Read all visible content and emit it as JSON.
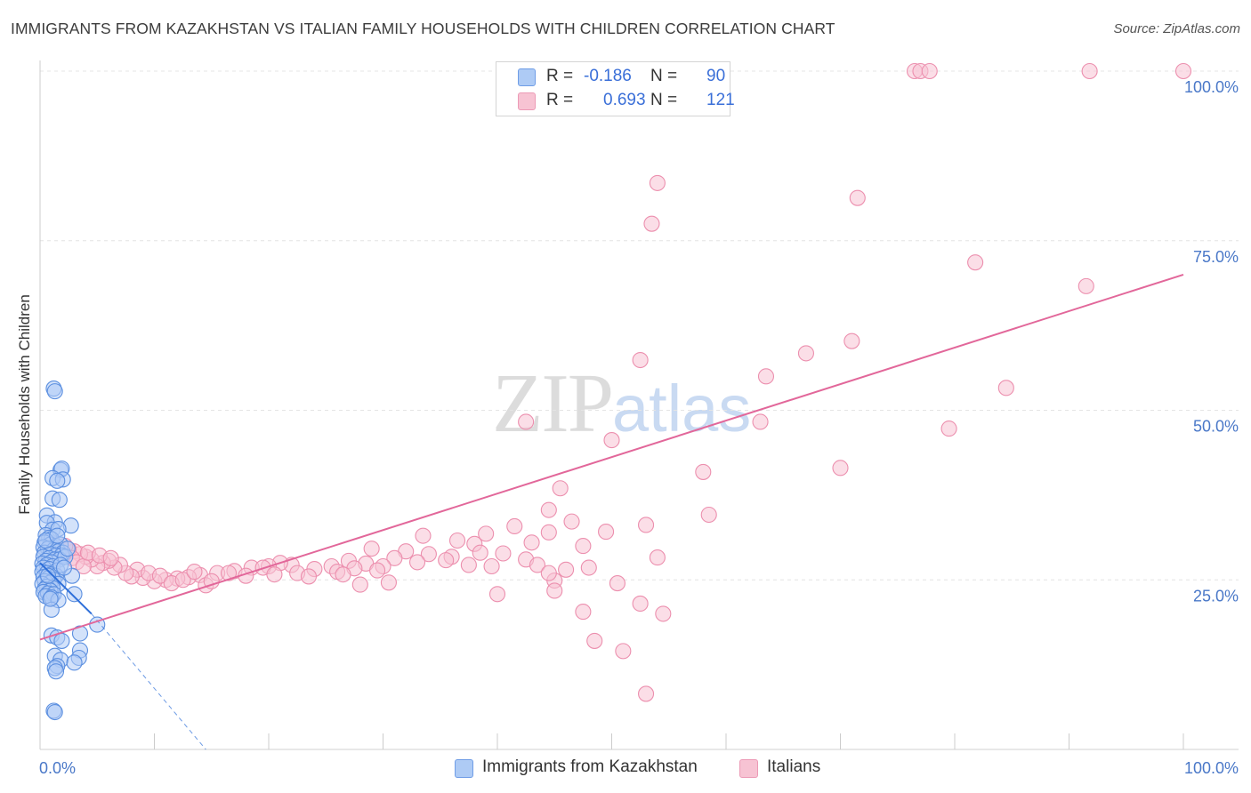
{
  "title": "IMMIGRANTS FROM KAZAKHSTAN VS ITALIAN FAMILY HOUSEHOLDS WITH CHILDREN CORRELATION CHART",
  "source": "Source: ZipAtlas.com",
  "watermark": {
    "zip": "ZIP",
    "atlas": "atlas"
  },
  "legend_stats": [
    {
      "r_label": "R =",
      "r_value": "-0.186",
      "n_label": "N =",
      "n_value": "90",
      "color": "#7aaaf0"
    },
    {
      "r_label": "R =",
      "r_value": "0.693",
      "n_label": "N =",
      "n_value": "121",
      "color": "#f4a6bf"
    }
  ],
  "colors": {
    "blue_fill": "#aecbf5",
    "blue_stroke": "#5b8fe0",
    "blue_line": "#2e6fd9",
    "pink_fill": "#f7c3d3",
    "pink_stroke": "#ec8fae",
    "pink_line": "#e2679a",
    "axis_label": "#4a78c8",
    "grid": "#e4e4e4"
  },
  "chart_data": {
    "type": "scatter",
    "title": "IMMIGRANTS FROM KAZAKHSTAN VS ITALIAN FAMILY HOUSEHOLDS WITH CHILDREN CORRELATION CHART",
    "xlabel": "",
    "ylabel": "Family Households with Children",
    "xlim": [
      0,
      100
    ],
    "ylim": [
      0,
      100
    ],
    "x_tick_labels": [
      "0.0%",
      "100.0%"
    ],
    "y_ticks": [
      25,
      50,
      75,
      100
    ],
    "y_tick_labels": [
      "25.0%",
      "50.0%",
      "75.0%",
      "100.0%"
    ],
    "grid": true,
    "legend_position": "bottom",
    "series": [
      {
        "name": "Immigrants from Kazakhstan",
        "r": -0.186,
        "n": 90,
        "trend": {
          "x0": 0,
          "y0": 27.5,
          "x1": 4.5,
          "y1": 20.0,
          "dashed_to_x": 14.5,
          "dashed_to_y": 0
        },
        "points": [
          [
            1.2,
            53.2
          ],
          [
            1.3,
            52.8
          ],
          [
            1.8,
            41.2
          ],
          [
            1.9,
            41.4
          ],
          [
            1.1,
            40.0
          ],
          [
            2.0,
            39.8
          ],
          [
            1.5,
            39.6
          ],
          [
            1.1,
            37.0
          ],
          [
            1.7,
            36.8
          ],
          [
            0.6,
            34.5
          ],
          [
            1.3,
            33.5
          ],
          [
            2.7,
            33.0
          ],
          [
            0.6,
            33.4
          ],
          [
            1.1,
            32.4
          ],
          [
            1.6,
            32.5
          ],
          [
            0.5,
            31.6
          ],
          [
            0.8,
            31.2
          ],
          [
            1.0,
            31.0
          ],
          [
            0.4,
            30.5
          ],
          [
            0.9,
            30.2
          ],
          [
            1.4,
            30.0
          ],
          [
            1.8,
            30.2
          ],
          [
            0.3,
            29.8
          ],
          [
            0.7,
            29.6
          ],
          [
            1.2,
            29.4
          ],
          [
            1.6,
            29.2
          ],
          [
            2.0,
            29.0
          ],
          [
            0.4,
            29.0
          ],
          [
            0.9,
            28.8
          ],
          [
            1.4,
            28.6
          ],
          [
            1.9,
            28.6
          ],
          [
            0.3,
            28.4
          ],
          [
            0.8,
            28.2
          ],
          [
            1.3,
            28.0
          ],
          [
            1.7,
            28.0
          ],
          [
            0.5,
            27.8
          ],
          [
            1.0,
            27.6
          ],
          [
            0.2,
            27.4
          ],
          [
            0.6,
            27.2
          ],
          [
            1.1,
            27.0
          ],
          [
            0.3,
            26.8
          ],
          [
            0.8,
            26.6
          ],
          [
            1.5,
            26.4
          ],
          [
            0.2,
            26.2
          ],
          [
            0.6,
            26.0
          ],
          [
            1.0,
            25.8
          ],
          [
            1.4,
            25.6
          ],
          [
            2.8,
            25.6
          ],
          [
            0.3,
            25.4
          ],
          [
            0.7,
            25.2
          ],
          [
            1.2,
            25.0
          ],
          [
            0.4,
            24.8
          ],
          [
            0.9,
            24.6
          ],
          [
            0.2,
            24.4
          ],
          [
            1.6,
            24.4
          ],
          [
            0.6,
            24.0
          ],
          [
            1.1,
            23.8
          ],
          [
            0.4,
            23.6
          ],
          [
            0.9,
            23.4
          ],
          [
            0.3,
            23.2
          ],
          [
            0.7,
            23.0
          ],
          [
            1.2,
            22.9
          ],
          [
            3.0,
            22.9
          ],
          [
            0.5,
            22.6
          ],
          [
            1.0,
            22.4
          ],
          [
            1.6,
            22.0
          ],
          [
            1.0,
            20.6
          ],
          [
            5.0,
            18.4
          ],
          [
            3.5,
            17.1
          ],
          [
            1.0,
            16.8
          ],
          [
            1.5,
            16.5
          ],
          [
            1.9,
            16.0
          ],
          [
            3.5,
            14.6
          ],
          [
            1.3,
            13.8
          ],
          [
            3.4,
            13.5
          ],
          [
            1.8,
            13.2
          ],
          [
            3.0,
            12.8
          ],
          [
            1.5,
            12.3
          ],
          [
            1.3,
            12.0
          ],
          [
            1.4,
            11.5
          ],
          [
            1.2,
            5.7
          ],
          [
            1.3,
            5.5
          ],
          [
            0.5,
            30.8
          ],
          [
            1.5,
            31.5
          ],
          [
            2.2,
            28.4
          ],
          [
            2.4,
            29.6
          ],
          [
            0.7,
            25.6
          ],
          [
            1.8,
            27.2
          ],
          [
            2.1,
            26.8
          ],
          [
            0.9,
            22.2
          ]
        ]
      },
      {
        "name": "Italians",
        "r": 0.693,
        "n": 121,
        "trend": {
          "x0": 0,
          "y0": 16.2,
          "x1": 100,
          "y1": 70.0
        },
        "points": [
          [
            76.5,
            100
          ],
          [
            77.0,
            100
          ],
          [
            77.8,
            100
          ],
          [
            91.8,
            100
          ],
          [
            100.0,
            100
          ],
          [
            54.0,
            83.5
          ],
          [
            53.5,
            77.5
          ],
          [
            71.5,
            81.3
          ],
          [
            81.8,
            71.8
          ],
          [
            91.5,
            68.3
          ],
          [
            71.0,
            60.2
          ],
          [
            67.0,
            58.4
          ],
          [
            52.5,
            57.4
          ],
          [
            63.5,
            55.0
          ],
          [
            84.5,
            53.3
          ],
          [
            42.5,
            48.3
          ],
          [
            63.0,
            48.3
          ],
          [
            79.5,
            47.3
          ],
          [
            50.0,
            45.6
          ],
          [
            70.0,
            41.5
          ],
          [
            58.0,
            40.9
          ],
          [
            45.5,
            38.5
          ],
          [
            44.5,
            35.3
          ],
          [
            58.5,
            34.6
          ],
          [
            46.5,
            33.6
          ],
          [
            53.0,
            33.1
          ],
          [
            41.5,
            32.9
          ],
          [
            49.5,
            32.1
          ],
          [
            44.5,
            32.0
          ],
          [
            39.0,
            31.8
          ],
          [
            33.5,
            31.5
          ],
          [
            36.5,
            30.8
          ],
          [
            38.0,
            30.3
          ],
          [
            43.0,
            30.5
          ],
          [
            47.5,
            30.0
          ],
          [
            29.0,
            29.6
          ],
          [
            32.0,
            29.2
          ],
          [
            34.0,
            28.8
          ],
          [
            36.0,
            28.4
          ],
          [
            38.5,
            29.0
          ],
          [
            40.5,
            28.9
          ],
          [
            42.5,
            28.0
          ],
          [
            31.0,
            28.2
          ],
          [
            33.0,
            27.6
          ],
          [
            35.5,
            27.9
          ],
          [
            37.5,
            27.2
          ],
          [
            39.5,
            27.0
          ],
          [
            27.0,
            27.8
          ],
          [
            28.5,
            27.4
          ],
          [
            30.0,
            27.0
          ],
          [
            25.5,
            27.0
          ],
          [
            27.5,
            26.7
          ],
          [
            29.5,
            26.4
          ],
          [
            24.0,
            26.6
          ],
          [
            26.0,
            26.2
          ],
          [
            22.0,
            27.2
          ],
          [
            21.0,
            27.5
          ],
          [
            20.0,
            27.0
          ],
          [
            18.5,
            26.8
          ],
          [
            17.0,
            26.3
          ],
          [
            15.5,
            26.0
          ],
          [
            14.0,
            25.7
          ],
          [
            13.0,
            25.4
          ],
          [
            12.0,
            25.2
          ],
          [
            11.0,
            25.0
          ],
          [
            10.0,
            24.8
          ],
          [
            9.0,
            25.3
          ],
          [
            8.5,
            26.5
          ],
          [
            8.0,
            25.5
          ],
          [
            7.5,
            26.0
          ],
          [
            7.0,
            27.2
          ],
          [
            6.5,
            26.8
          ],
          [
            6.0,
            27.8
          ],
          [
            5.5,
            27.5
          ],
          [
            5.0,
            27.0
          ],
          [
            4.5,
            28.0
          ],
          [
            4.0,
            28.4
          ],
          [
            3.5,
            28.8
          ],
          [
            3.0,
            29.2
          ],
          [
            2.5,
            29.5
          ],
          [
            2.0,
            29.0
          ],
          [
            1.5,
            28.6
          ],
          [
            1.0,
            29.8
          ],
          [
            0.8,
            28.0
          ],
          [
            1.2,
            30.2
          ],
          [
            2.2,
            30.0
          ],
          [
            2.8,
            28.2
          ],
          [
            3.2,
            27.6
          ],
          [
            3.8,
            27.0
          ],
          [
            4.2,
            29.0
          ],
          [
            5.2,
            28.6
          ],
          [
            6.2,
            28.2
          ],
          [
            9.5,
            26.0
          ],
          [
            10.5,
            25.6
          ],
          [
            11.5,
            24.5
          ],
          [
            12.5,
            25.0
          ],
          [
            13.5,
            26.2
          ],
          [
            14.5,
            24.2
          ],
          [
            15.0,
            24.8
          ],
          [
            16.5,
            26.0
          ],
          [
            18.0,
            25.6
          ],
          [
            19.5,
            26.8
          ],
          [
            20.5,
            25.8
          ],
          [
            22.5,
            26.0
          ],
          [
            23.5,
            25.5
          ],
          [
            26.5,
            25.8
          ],
          [
            28.0,
            24.3
          ],
          [
            30.5,
            24.6
          ],
          [
            40.0,
            22.9
          ],
          [
            45.0,
            24.9
          ],
          [
            50.5,
            24.5
          ],
          [
            54.0,
            28.3
          ],
          [
            48.0,
            26.8
          ],
          [
            46.0,
            26.5
          ],
          [
            43.5,
            27.2
          ],
          [
            52.5,
            21.5
          ],
          [
            54.5,
            20.0
          ],
          [
            47.5,
            20.3
          ],
          [
            44.5,
            26.0
          ],
          [
            45.0,
            23.4
          ],
          [
            48.5,
            16.0
          ],
          [
            51.0,
            14.5
          ],
          [
            53.0,
            8.2
          ]
        ]
      }
    ]
  }
}
